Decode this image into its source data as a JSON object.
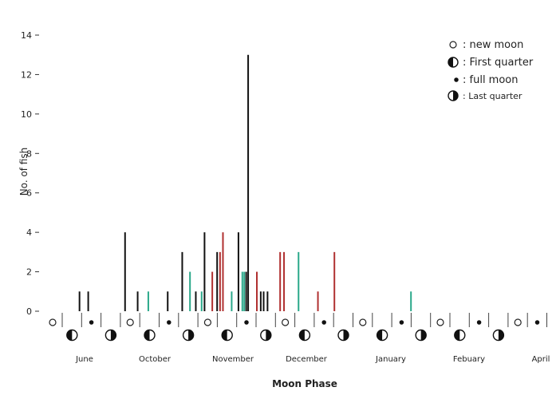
{
  "chart_data": {
    "type": "bar",
    "title": "",
    "xlabel": "Moon Phase",
    "ylabel": "No. of fish",
    "ylim": [
      0,
      14
    ],
    "yticks": [
      0,
      2,
      4,
      6,
      8,
      10,
      12,
      14
    ],
    "grid": false,
    "legend_position": "top-right",
    "legend": [
      {
        "symbol": "new",
        "label": "new moon"
      },
      {
        "symbol": "first",
        "label": "First quarter"
      },
      {
        "symbol": "full",
        "label": "full moon"
      },
      {
        "symbol": "last",
        "label": "Last quarter"
      }
    ],
    "months": [
      "June",
      "October",
      "November",
      "December",
      "January",
      "Febuary",
      "April"
    ],
    "phases": [
      "new",
      "first",
      "full",
      "last",
      "new",
      "first",
      "full",
      "last",
      "new",
      "first",
      "full",
      "last",
      "new",
      "first",
      "full",
      "last",
      "new",
      "first",
      "full",
      "last",
      "new",
      "first",
      "full",
      "last",
      "new",
      "full"
    ],
    "colors": {
      "black": "#111111",
      "red": "#b03030",
      "teal": "#2aa88a"
    },
    "bars": [
      {
        "x": 1.55,
        "value": 1,
        "color": "black"
      },
      {
        "x": 2.0,
        "value": 1,
        "color": "black"
      },
      {
        "x": 3.9,
        "value": 4,
        "color": "black"
      },
      {
        "x": 4.55,
        "value": 1,
        "color": "black"
      },
      {
        "x": 5.1,
        "value": 1,
        "color": "teal"
      },
      {
        "x": 6.1,
        "value": 1,
        "color": "black"
      },
      {
        "x": 6.85,
        "value": 3,
        "color": "black"
      },
      {
        "x": 7.25,
        "value": 2,
        "color": "teal"
      },
      {
        "x": 7.55,
        "value": 1,
        "color": "black"
      },
      {
        "x": 7.85,
        "value": 1,
        "color": "teal"
      },
      {
        "x": 8.0,
        "value": 4,
        "color": "black"
      },
      {
        "x": 8.4,
        "value": 2,
        "color": "red"
      },
      {
        "x": 8.65,
        "value": 3,
        "color": "black"
      },
      {
        "x": 8.8,
        "value": 3,
        "color": "red"
      },
      {
        "x": 8.95,
        "value": 4,
        "color": "red"
      },
      {
        "x": 9.4,
        "value": 1,
        "color": "teal"
      },
      {
        "x": 9.75,
        "value": 4,
        "color": "black"
      },
      {
        "x": 9.95,
        "value": 2,
        "color": "teal"
      },
      {
        "x": 10.05,
        "value": 2,
        "color": "teal"
      },
      {
        "x": 10.15,
        "value": 2,
        "color": "black"
      },
      {
        "x": 10.25,
        "value": 13,
        "color": "black"
      },
      {
        "x": 10.7,
        "value": 2,
        "color": "red"
      },
      {
        "x": 10.9,
        "value": 1,
        "color": "black"
      },
      {
        "x": 11.05,
        "value": 1,
        "color": "black"
      },
      {
        "x": 11.25,
        "value": 1,
        "color": "black"
      },
      {
        "x": 11.9,
        "value": 3,
        "color": "red"
      },
      {
        "x": 12.1,
        "value": 3,
        "color": "red"
      },
      {
        "x": 12.85,
        "value": 3,
        "color": "teal"
      },
      {
        "x": 13.85,
        "value": 1,
        "color": "red"
      },
      {
        "x": 14.7,
        "value": 3,
        "color": "red"
      },
      {
        "x": 18.65,
        "value": 1,
        "color": "teal"
      }
    ]
  }
}
